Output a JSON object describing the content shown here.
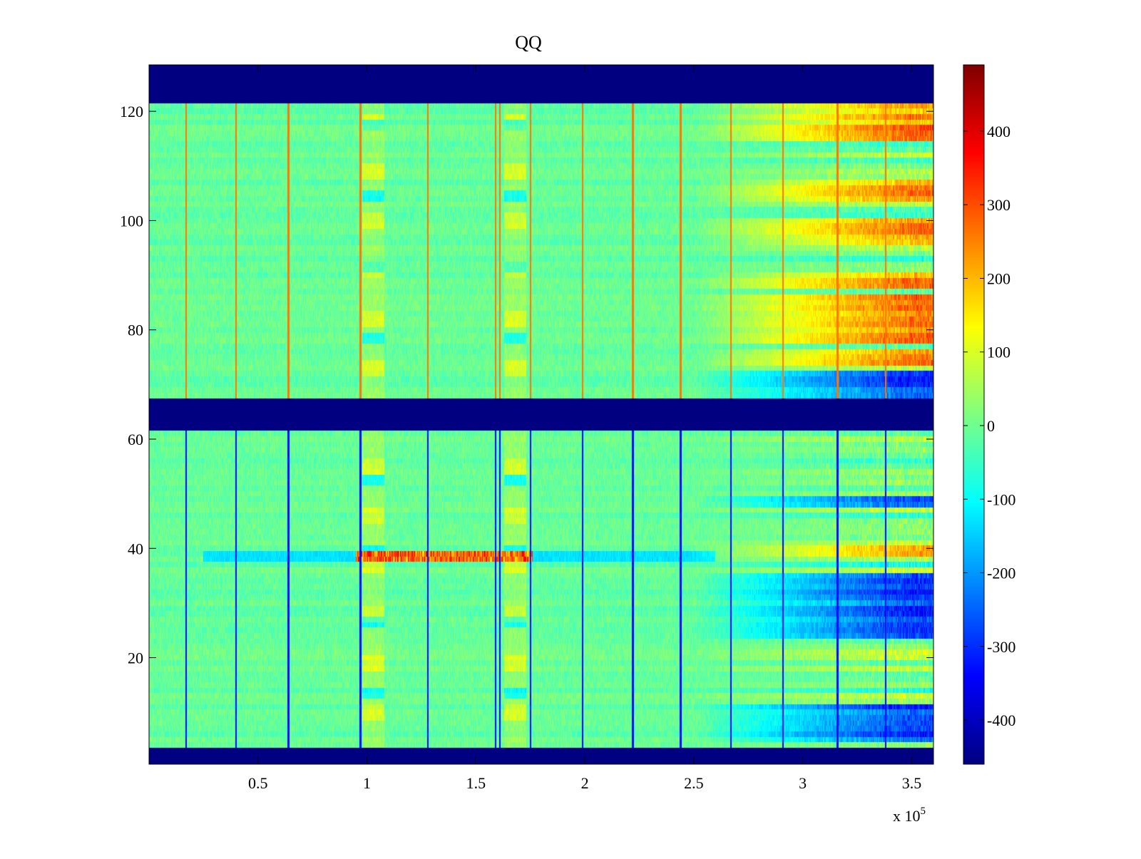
{
  "chart_data": {
    "type": "heatmap",
    "title": "QQ",
    "xlabel": "",
    "ylabel": "",
    "x_exponent_label": "x 10",
    "x_exponent_power": "5",
    "xlim": [
      0,
      3.6
    ],
    "ylim": [
      0.5,
      128.5
    ],
    "x_ticks": [
      0.5,
      1,
      1.5,
      2,
      2.5,
      3,
      3.5
    ],
    "x_tick_labels": [
      "0.5",
      "1",
      "1.5",
      "2",
      "2.5",
      "3",
      "3.5"
    ],
    "y_ticks": [
      20,
      40,
      60,
      80,
      100,
      120
    ],
    "y_tick_labels": [
      "20",
      "40",
      "60",
      "80",
      "100",
      "120"
    ],
    "colorbar": {
      "colormap": "jet",
      "range": [
        -460,
        490
      ],
      "ticks": [
        -400,
        -300,
        -200,
        -100,
        0,
        100,
        200,
        300,
        400
      ],
      "tick_labels": [
        "-400",
        "-300",
        "-200",
        "-100",
        "0",
        "100",
        "200",
        "300",
        "400"
      ]
    },
    "empty_rows": [
      [
        1,
        3
      ],
      [
        62,
        67
      ],
      [
        122,
        128
      ]
    ],
    "empty_value": -460,
    "vertical_artifact_lines_x": [
      0.17,
      0.4,
      0.64,
      0.97,
      1.28,
      1.59,
      1.61,
      1.75,
      1.99,
      2.22,
      2.44,
      2.67,
      2.91,
      3.16,
      3.38
    ],
    "bright_column_groups": [
      [
        0.98,
        1.08
      ],
      [
        1.63,
        1.73
      ]
    ],
    "high_variance_x_start": 2.5,
    "notable_rows": {
      "positive_band": [
        [
          40,
          39
        ],
        [
          74,
          76
        ],
        [
          78,
          86
        ],
        [
          88,
          90
        ],
        [
          96,
          100
        ],
        [
          104,
          107
        ],
        [
          115,
          121
        ]
      ],
      "negative_band": [
        [
          24,
          35
        ],
        [
          5,
          11
        ],
        [
          48,
          49
        ],
        [
          68,
          72
        ]
      ]
    }
  }
}
